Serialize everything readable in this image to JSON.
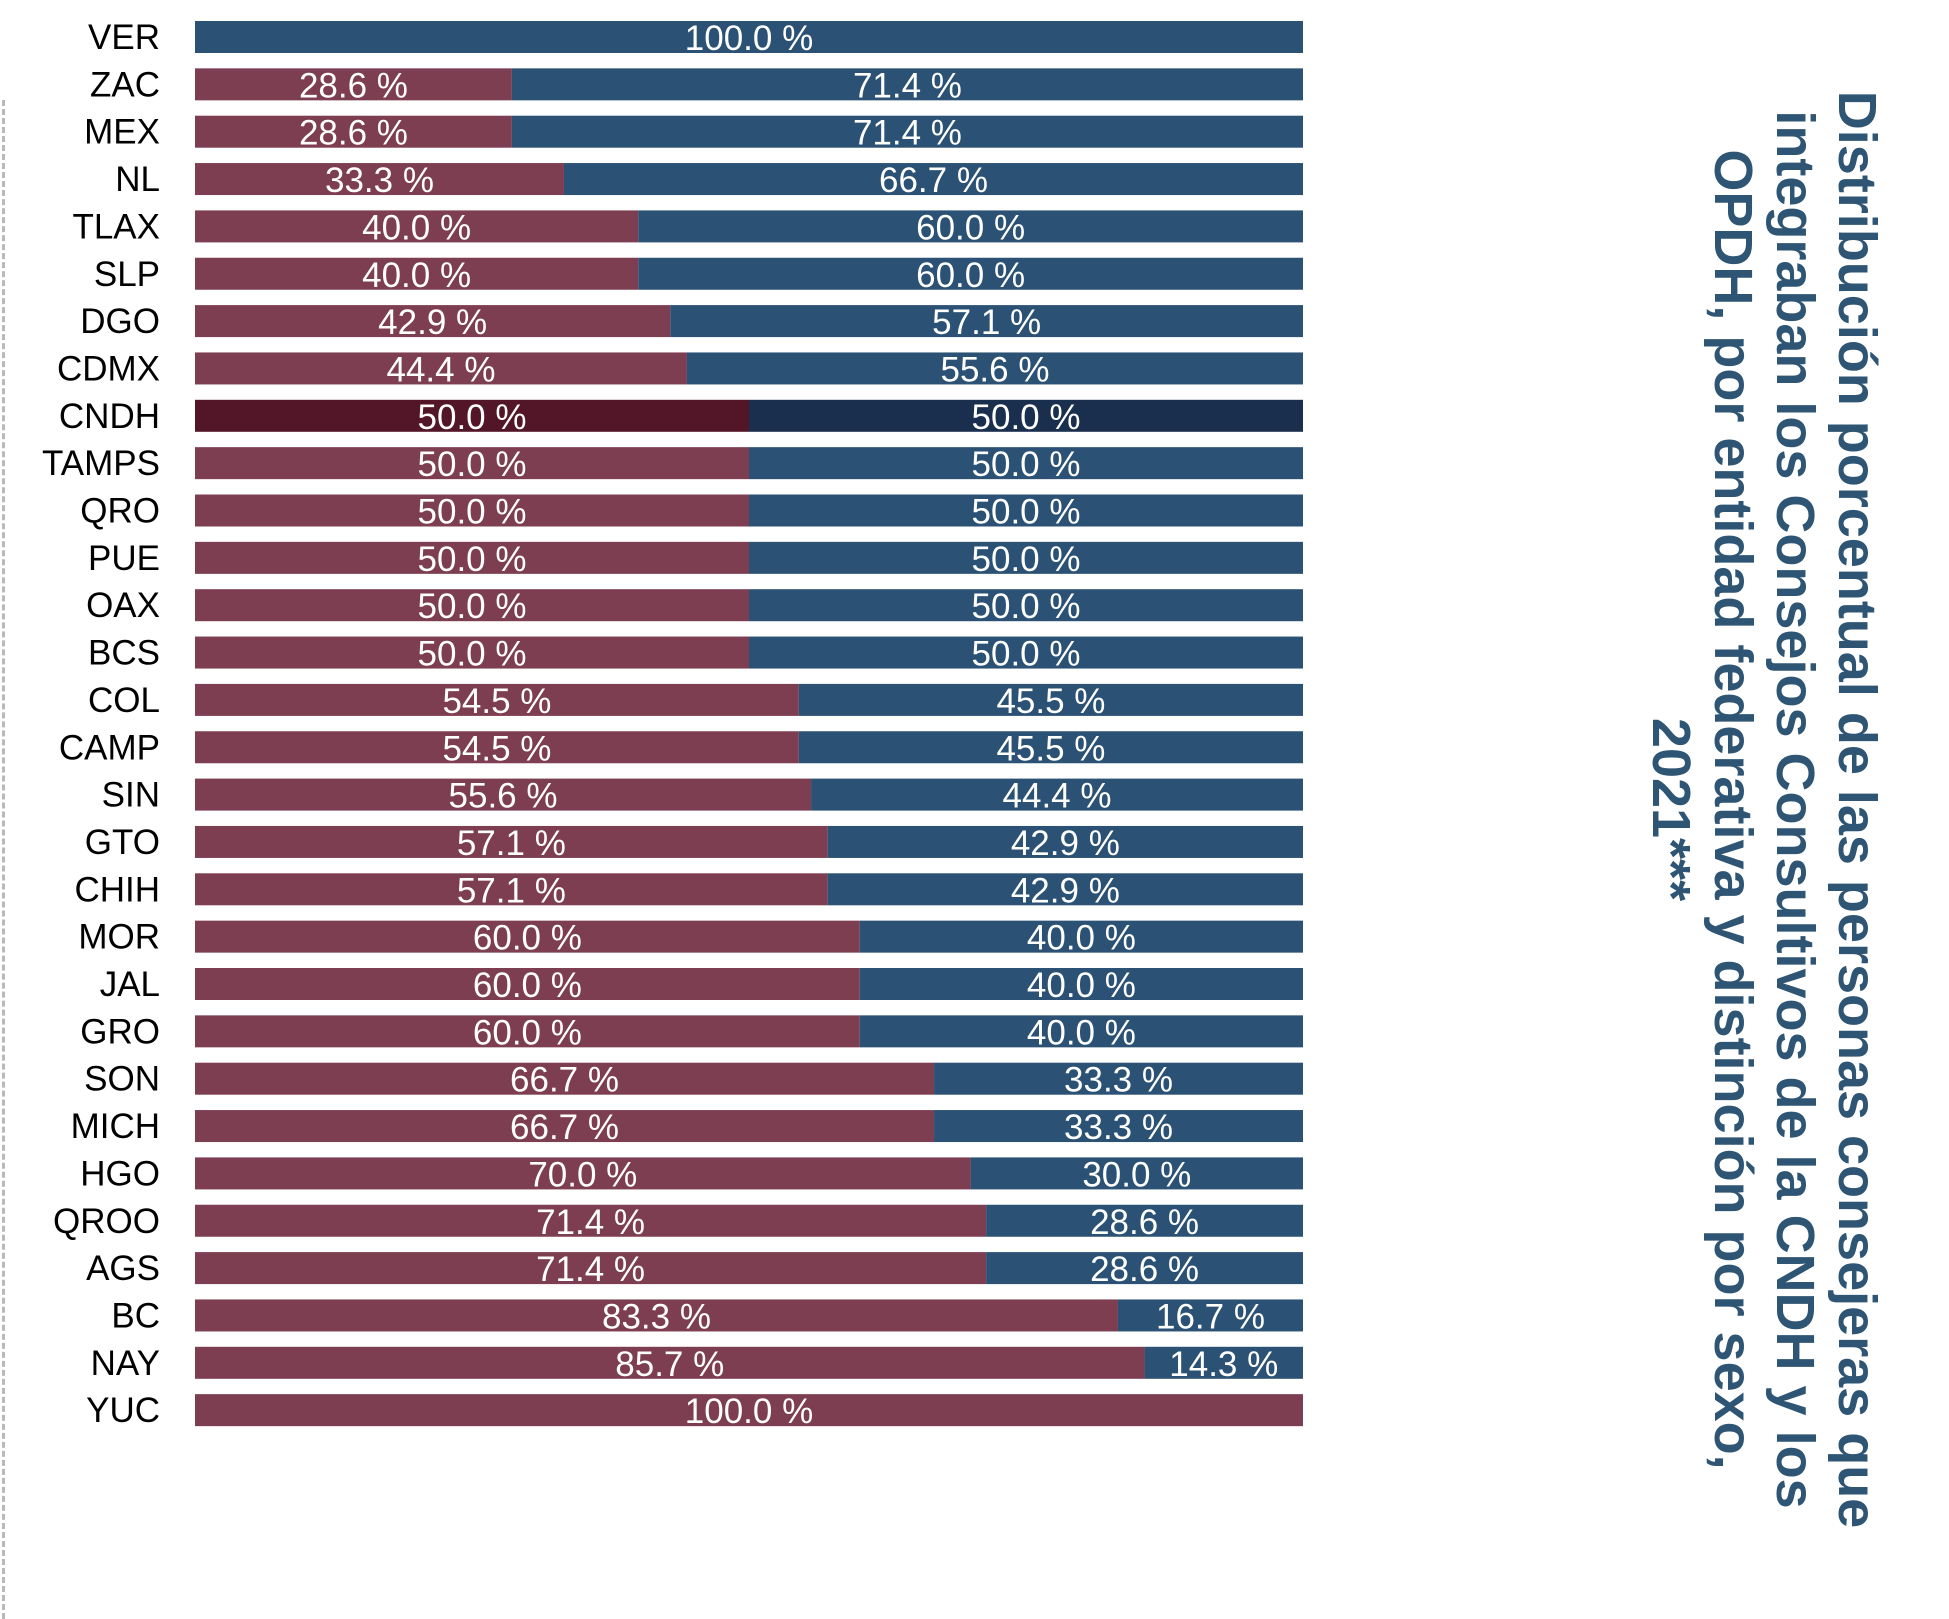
{
  "title": "Distribución porcentual de las personas consejeras que integraban los Consejos Consultivos de la CNDH y los OPDH, por entidad federativa y distinción por sexo, 2021***",
  "colors": {
    "female": "#7d3e51",
    "male": "#2b5274",
    "female_highlight": "#531628",
    "male_highlight": "#1a2e4e",
    "label_text": "#ffffff",
    "category_text": "#000000"
  },
  "chart_data": {
    "type": "bar",
    "orientation": "horizontal",
    "stacked": true,
    "xlim": [
      0,
      100
    ],
    "highlighted_category": "CNDH",
    "categories": [
      "VER",
      "ZAC",
      "MEX",
      "NL",
      "TLAX",
      "SLP",
      "DGO",
      "CDMX",
      "CNDH",
      "TAMPS",
      "QRO",
      "PUE",
      "OAX",
      "BCS",
      "COL",
      "CAMP",
      "SIN",
      "GTO",
      "CHIH",
      "MOR",
      "JAL",
      "GRO",
      "SON",
      "MICH",
      "HGO",
      "QROO",
      "AGS",
      "BC",
      "NAY",
      "YUC"
    ],
    "series": [
      {
        "values": [
          0,
          28.6,
          28.6,
          33.3,
          40.0,
          40.0,
          42.9,
          44.4,
          50.0,
          50.0,
          50.0,
          50.0,
          50.0,
          50.0,
          54.5,
          54.5,
          55.6,
          57.1,
          57.1,
          60.0,
          60.0,
          60.0,
          66.7,
          66.7,
          70.0,
          71.4,
          71.4,
          83.3,
          85.7,
          100.0
        ],
        "labels": [
          "",
          "28.6 %",
          "28.6 %",
          "33.3 %",
          "40.0 %",
          "40.0 %",
          "42.9 %",
          "44.4 %",
          "50.0 %",
          "50.0 %",
          "50.0 %",
          "50.0 %",
          "50.0 %",
          "50.0 %",
          "54.5 %",
          "54.5 %",
          "55.6 %",
          "57.1 %",
          "57.1 %",
          "60.0 %",
          "60.0 %",
          "60.0 %",
          "66.7 %",
          "66.7 %",
          "70.0 %",
          "71.4 %",
          "71.4 %",
          "83.3 %",
          "85.7 %",
          "100.0 %"
        ]
      },
      {
        "values": [
          100.0,
          71.4,
          71.4,
          66.7,
          60.0,
          60.0,
          57.1,
          55.6,
          50.0,
          50.0,
          50.0,
          50.0,
          50.0,
          50.0,
          45.5,
          45.5,
          44.4,
          42.9,
          42.9,
          40.0,
          40.0,
          40.0,
          33.3,
          33.3,
          30.0,
          28.6,
          28.6,
          16.7,
          14.3,
          0
        ],
        "labels": [
          "100.0 %",
          "71.4 %",
          "71.4 %",
          "66.7 %",
          "60.0 %",
          "60.0 %",
          "57.1 %",
          "55.6 %",
          "50.0 %",
          "50.0 %",
          "50.0 %",
          "50.0 %",
          "50.0 %",
          "50.0 %",
          "45.5 %",
          "45.5 %",
          "44.4 %",
          "42.9 %",
          "42.9 %",
          "40.0 %",
          "40.0 %",
          "40.0 %",
          "33.3 %",
          "33.3 %",
          "30.0 %",
          "28.6 %",
          "28.6 %",
          "16.7 %",
          "14.3 %",
          ""
        ]
      }
    ]
  }
}
